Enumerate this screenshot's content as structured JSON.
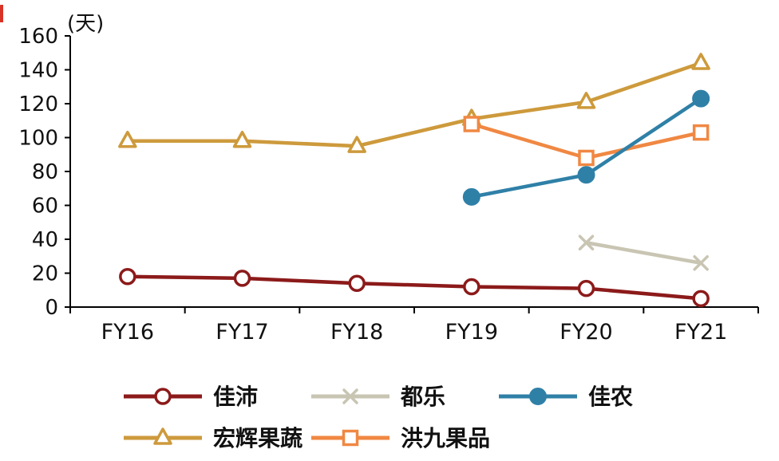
{
  "chart_data": {
    "type": "line",
    "title": "",
    "unit_label": "(天)",
    "categories": [
      "FY16",
      "FY17",
      "FY18",
      "FY19",
      "FY20",
      "FY21"
    ],
    "ylim": [
      0,
      160
    ],
    "yticks": [
      0,
      20,
      40,
      60,
      80,
      100,
      120,
      140,
      160
    ],
    "grid": false,
    "legend_position": "bottom",
    "series": [
      {
        "key": "jiapei",
        "name": "佳沛",
        "color": "#8c1a1a",
        "marker": "circle-open",
        "values": [
          18,
          17,
          14,
          12,
          11,
          5
        ]
      },
      {
        "key": "dule",
        "name": "都乐",
        "color": "#c9c5b3",
        "marker": "x",
        "values": [
          null,
          null,
          null,
          null,
          38,
          26
        ]
      },
      {
        "key": "jianong",
        "name": "佳农",
        "color": "#2f80a7",
        "marker": "circle-filled",
        "values": [
          null,
          null,
          null,
          65,
          78,
          123
        ]
      },
      {
        "key": "honghui",
        "name": "宏辉果蔬",
        "color": "#cd9a3c",
        "marker": "triangle-open",
        "values": [
          98,
          98,
          95,
          111,
          121,
          144
        ]
      },
      {
        "key": "hongjiu",
        "name": "洪九果品",
        "color": "#f08843",
        "marker": "square-open",
        "values": [
          null,
          null,
          null,
          108,
          88,
          103
        ]
      }
    ],
    "legend_rows": [
      [
        "jiapei",
        "dule",
        "jianong"
      ],
      [
        "honghui",
        "hongjiu"
      ]
    ]
  },
  "accent": {
    "red_mark_color": "#d93226",
    "axis_color": "#000000",
    "text_color": "#111111"
  }
}
